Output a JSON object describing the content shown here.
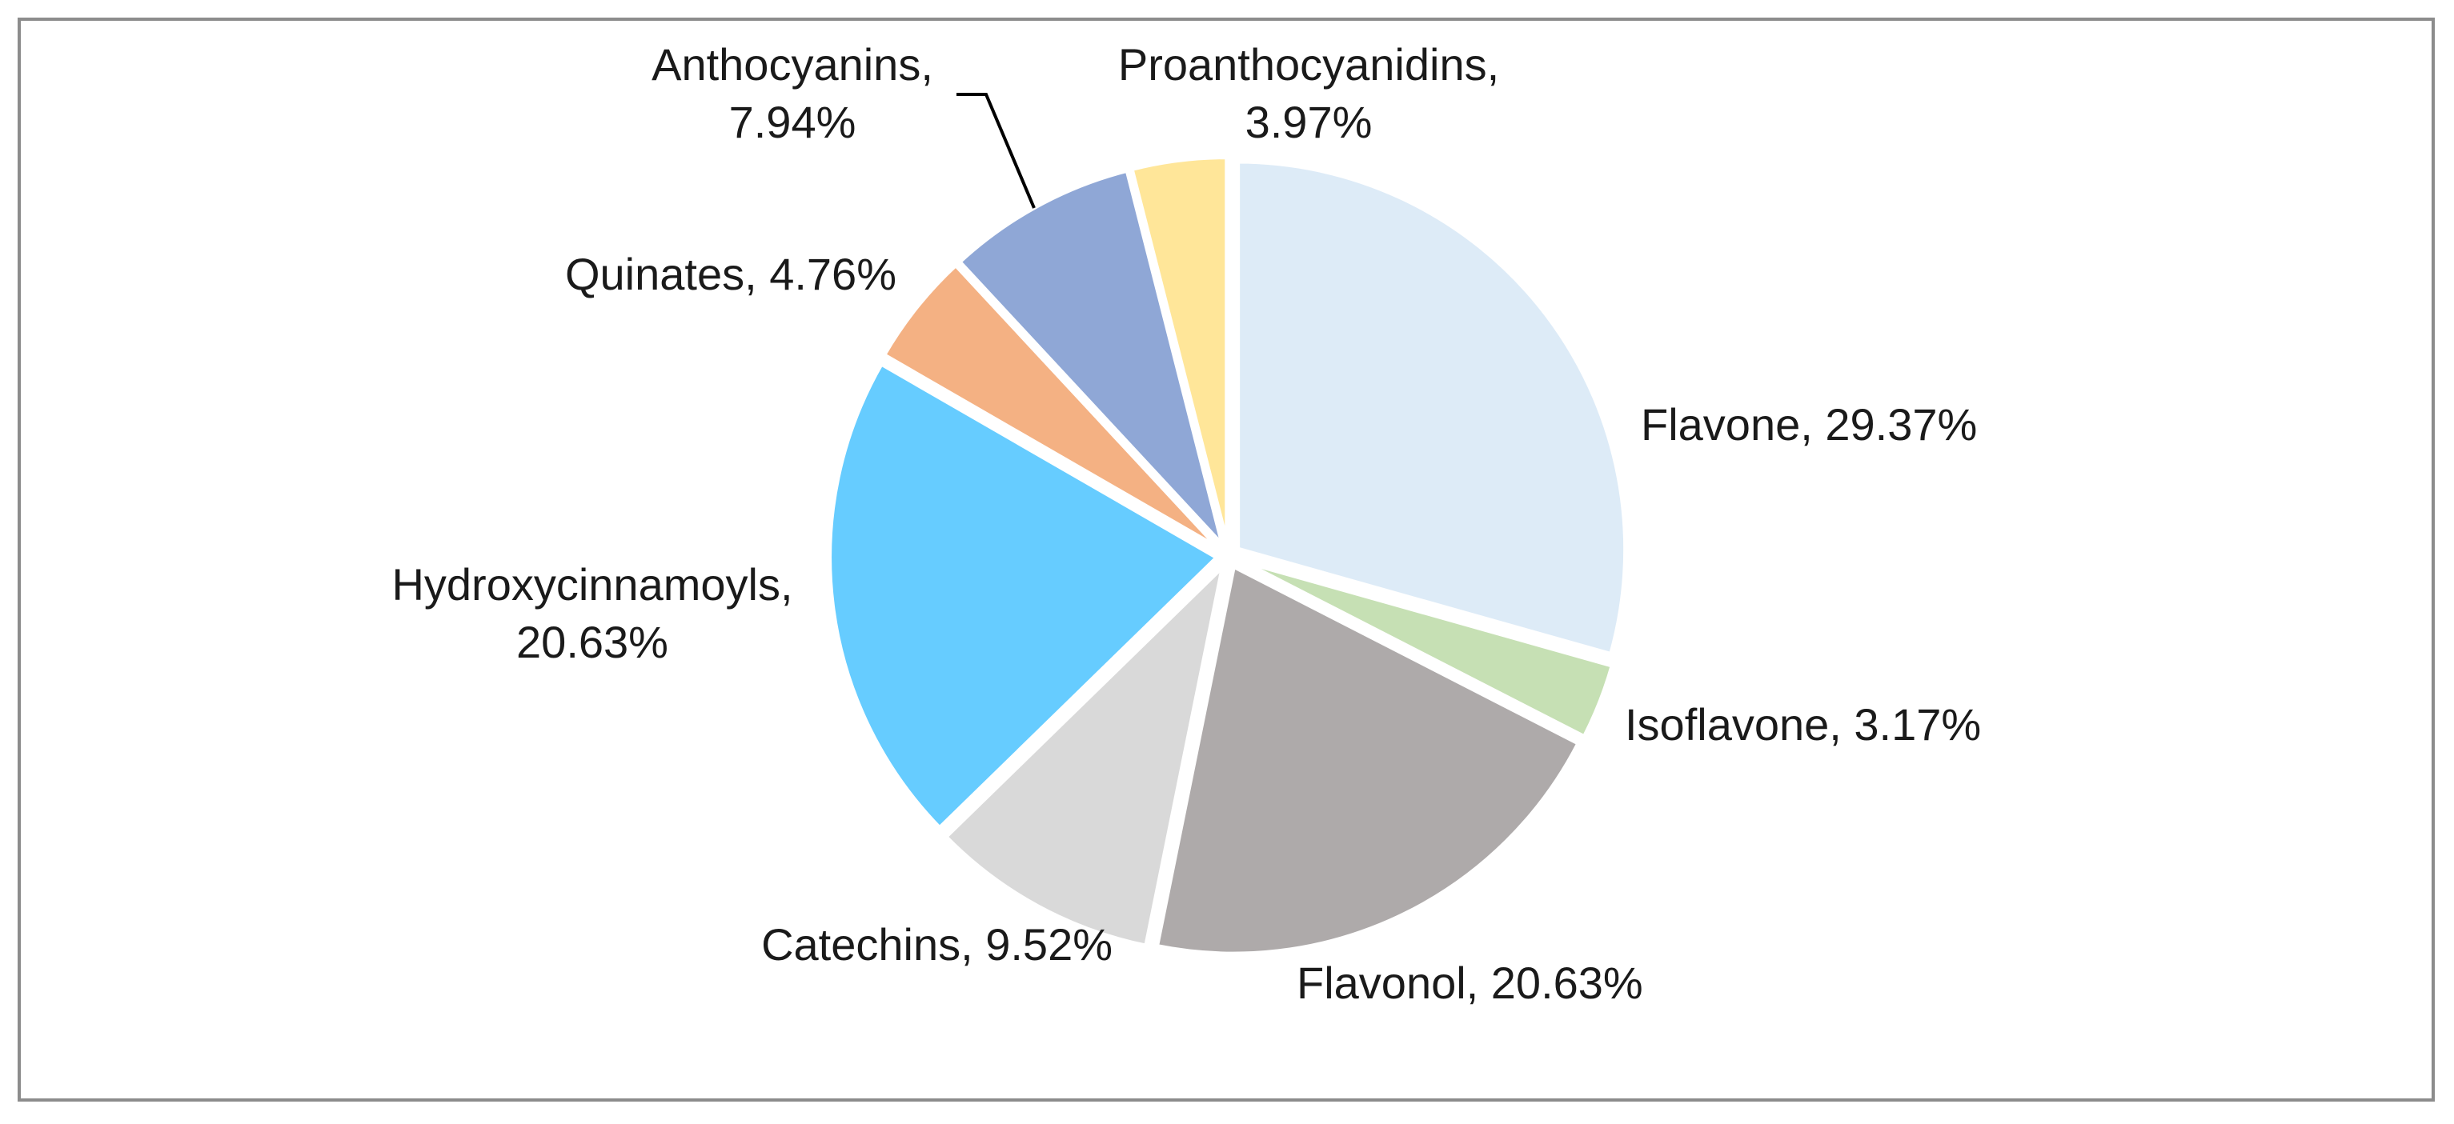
{
  "chart_data": {
    "type": "pie",
    "title": "",
    "start_angle_deg": 0,
    "direction": "clockwise",
    "slices": [
      {
        "name": "Flavone",
        "value": 29.37,
        "label": "Flavone, 29.37%",
        "color": "#DDEBF7"
      },
      {
        "name": "Isoflavone",
        "value": 3.17,
        "label": "Isoflavone, 3.17%",
        "color": "#C6E0B4"
      },
      {
        "name": "Flavonol",
        "value": 20.63,
        "label": "Flavonol, 20.63%",
        "color": "#AEAAAA"
      },
      {
        "name": "Catechins",
        "value": 9.52,
        "label": "Catechins, 9.52%",
        "color": "#D9D9D9"
      },
      {
        "name": "Hydroxycinnamoyls",
        "value": 20.63,
        "label": [
          "Hydroxycinnamoyls,",
          "20.63%"
        ],
        "color": "#66CCFF"
      },
      {
        "name": "Quinates",
        "value": 4.76,
        "label": "Quinates, 4.76%",
        "color": "#F4B183"
      },
      {
        "name": "Anthocyanins",
        "value": 7.94,
        "label": [
          "Anthocyanins,",
          "7.94%"
        ],
        "color": "#8FA7D6"
      },
      {
        "name": "Proanthocyanidins",
        "value": 3.97,
        "label": [
          "Proanthocyanidins,",
          "3.97%"
        ],
        "color": "#FFE699"
      }
    ],
    "legend": "none",
    "data_labels": "category-and-percent"
  }
}
